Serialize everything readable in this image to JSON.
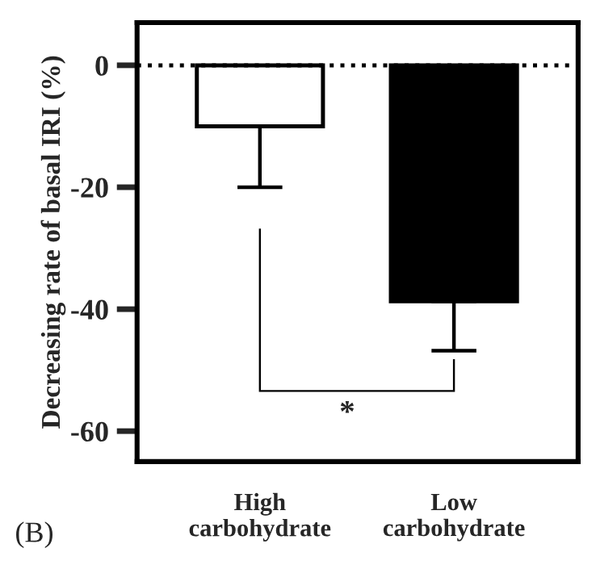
{
  "chart_data": {
    "type": "bar",
    "ylabel": "Decreasing rate of basal IRI (%)",
    "categories": [
      "High carbohydrate",
      "Low carbohydrate"
    ],
    "values": [
      -10,
      -38.7
    ],
    "colors": [
      "#ffffff",
      "#000000"
    ],
    "errors": [
      [
        -20,
        -10
      ],
      [
        -46.8,
        -38.7
      ]
    ],
    "ylim": [
      -65,
      7
    ],
    "yticks": [
      0,
      -20,
      -40,
      -60
    ],
    "ref_lines": [
      {
        "axis": "y",
        "value": 0,
        "color": "#000000",
        "line_style": "dotted"
      }
    ],
    "annotations": [
      "*",
      "(B)"
    ]
  }
}
